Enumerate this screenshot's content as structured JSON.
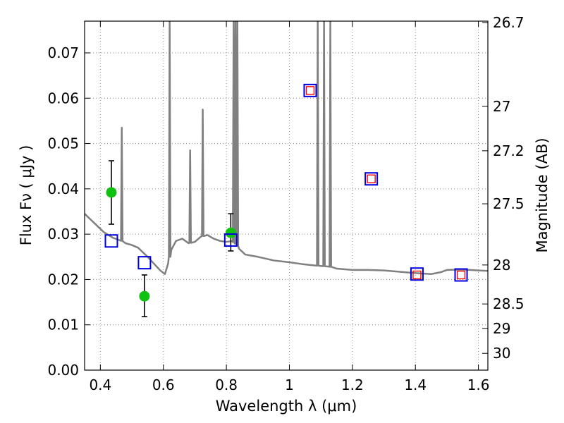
{
  "chart_data": {
    "type": "scatter",
    "xlabel": "Wavelength  λ (μm)",
    "ylabel": "Flux  Fν  ( μJy )",
    "y2label": "Magnitude (AB)",
    "xlim": [
      0.35,
      1.63
    ],
    "ylim": [
      0.0,
      0.077
    ],
    "grid": true,
    "x_ticks": [
      0.4,
      0.6,
      0.8,
      1.0,
      1.2,
      1.4,
      1.6
    ],
    "x_tick_labels": [
      "0.4",
      "0.6",
      "0.8",
      "1",
      "1.2",
      "1.4",
      "1.6"
    ],
    "y_ticks": [
      0.0,
      0.01,
      0.02,
      0.03,
      0.04,
      0.05,
      0.06,
      0.07
    ],
    "y_tick_labels": [
      "0.00",
      "0.01",
      "0.02",
      "0.03",
      "0.04",
      "0.05",
      "0.06",
      "0.07"
    ],
    "y2_ticks": [
      {
        "label": "26.7",
        "flux": 0.0767
      },
      {
        "label": "27",
        "flux": 0.0582
      },
      {
        "label": "27.2",
        "flux": 0.0484
      },
      {
        "label": "27.5",
        "flux": 0.0367
      },
      {
        "label": "28",
        "flux": 0.0232
      },
      {
        "label": "28.5",
        "flux": 0.0146
      },
      {
        "label": "29",
        "flux": 0.0092
      },
      {
        "label": "30",
        "flux": 0.0037
      }
    ],
    "series": [
      {
        "kind": "line",
        "color": "#808080",
        "points": [
          [
            0.35,
            0.0345
          ],
          [
            0.38,
            0.0325
          ],
          [
            0.41,
            0.0305
          ],
          [
            0.44,
            0.0292
          ],
          [
            0.47,
            0.0285
          ],
          [
            0.48,
            0.028
          ],
          [
            0.5,
            0.0276
          ],
          [
            0.52,
            0.027
          ],
          [
            0.55,
            0.025
          ],
          [
            0.57,
            0.0235
          ],
          [
            0.59,
            0.022
          ],
          [
            0.605,
            0.0212
          ],
          [
            0.615,
            0.0235
          ],
          [
            0.625,
            0.0265
          ],
          [
            0.64,
            0.0285
          ],
          [
            0.66,
            0.029
          ],
          [
            0.68,
            0.028
          ],
          [
            0.7,
            0.0283
          ],
          [
            0.72,
            0.0295
          ],
          [
            0.74,
            0.0298
          ],
          [
            0.76,
            0.029
          ],
          [
            0.78,
            0.0285
          ],
          [
            0.8,
            0.0283
          ],
          [
            0.82,
            0.0285
          ],
          [
            0.84,
            0.0268
          ],
          [
            0.86,
            0.0255
          ],
          [
            0.9,
            0.025
          ],
          [
            0.95,
            0.0242
          ],
          [
            1.0,
            0.0238
          ],
          [
            1.04,
            0.0234
          ],
          [
            1.08,
            0.0231
          ],
          [
            1.13,
            0.0228
          ],
          [
            1.15,
            0.0224
          ],
          [
            1.2,
            0.0221
          ],
          [
            1.25,
            0.0221
          ],
          [
            1.3,
            0.022
          ],
          [
            1.35,
            0.0217
          ],
          [
            1.4,
            0.0214
          ],
          [
            1.45,
            0.0212
          ],
          [
            1.48,
            0.0216
          ],
          [
            1.5,
            0.0221
          ],
          [
            1.55,
            0.0222
          ],
          [
            1.6,
            0.022
          ],
          [
            1.63,
            0.0219
          ]
        ],
        "emission_lines": [
          {
            "x": 0.468,
            "peak": 0.0535
          },
          {
            "x": 0.62,
            "peak": 0.077
          },
          {
            "x": 0.685,
            "peak": 0.0485
          },
          {
            "x": 0.725,
            "peak": 0.0575
          },
          {
            "x": 0.823,
            "peak": 0.077
          },
          {
            "x": 0.829,
            "peak": 0.077
          },
          {
            "x": 0.835,
            "peak": 0.077
          },
          {
            "x": 1.09,
            "peak": 0.077
          },
          {
            "x": 1.11,
            "peak": 0.077
          },
          {
            "x": 1.13,
            "peak": 0.077
          }
        ]
      },
      {
        "kind": "points",
        "marker": "circle",
        "color": "#11c111",
        "points": [
          {
            "x": 0.435,
            "y": 0.0392,
            "yerr_low": 0.0322,
            "yerr_high": 0.0462
          },
          {
            "x": 0.54,
            "y": 0.0163,
            "yerr_low": 0.0118,
            "yerr_high": 0.021
          },
          {
            "x": 0.814,
            "y": 0.0303,
            "yerr_low": 0.0263,
            "yerr_high": 0.0345
          }
        ]
      },
      {
        "kind": "points",
        "marker": "square",
        "color": "#0000dd",
        "points": [
          {
            "x": 0.435,
            "y": 0.0285
          },
          {
            "x": 0.54,
            "y": 0.0237
          },
          {
            "x": 0.814,
            "y": 0.0287
          },
          {
            "x": 1.066,
            "y": 0.0617
          },
          {
            "x": 1.26,
            "y": 0.0422
          },
          {
            "x": 1.405,
            "y": 0.0212
          },
          {
            "x": 1.545,
            "y": 0.021
          }
        ]
      },
      {
        "kind": "points",
        "marker": "square",
        "color": "#ff0000",
        "points": [
          {
            "x": 1.066,
            "y": 0.0617
          },
          {
            "x": 1.26,
            "y": 0.0422
          },
          {
            "x": 1.405,
            "y": 0.021
          },
          {
            "x": 1.545,
            "y": 0.021
          }
        ]
      }
    ]
  }
}
